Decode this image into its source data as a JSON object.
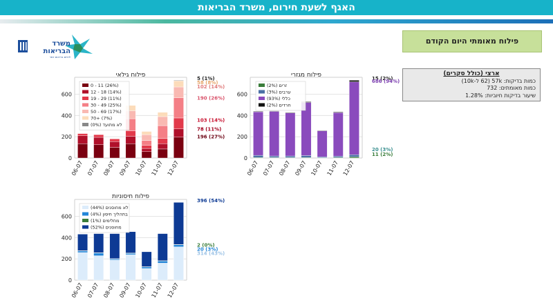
{
  "header": {
    "title": "האגף לשעת חירום, משרד הבריאות"
  },
  "logo": {
    "line1": "משרד",
    "line2": "הבריאות",
    "line3": "לחיים בריאים יותר"
  },
  "banner": {
    "text": "פילוח מאומתי היום הקודם"
  },
  "summary": {
    "title": "ארצי (כולל סקרים)",
    "line1": "כמות בדיקות: 57k (62 ל-10k)",
    "line2": "כמות מאומתים: 732",
    "line3": "שיעור בדיקות חיוביות: 1.28%"
  },
  "colors": {
    "header": "#17b3c9",
    "banner": "#c7e09a"
  },
  "chart_data": [
    {
      "id": "age",
      "type": "bar",
      "stacked": true,
      "title": "פילוח גילאי",
      "categories": [
        "06-07",
        "07-07",
        "08-07",
        "09-07",
        "10-07",
        "11-07",
        "12-07"
      ],
      "ylim": [
        0,
        760
      ],
      "yticks": [
        0,
        200,
        400,
        600
      ],
      "grid": true,
      "series": [
        {
          "name": "0 - 11 (26%)",
          "color": "#7a0010",
          "values": [
            135,
            125,
            100,
            135,
            60,
            85,
            196
          ]
        },
        {
          "name": "12 - 18 (14%)",
          "color": "#b0102a",
          "values": [
            75,
            70,
            55,
            70,
            30,
            50,
            78
          ]
        },
        {
          "name": "19 - 29 (11%)",
          "color": "#e23a4b",
          "values": [
            20,
            25,
            25,
            50,
            30,
            50,
            103
          ]
        },
        {
          "name": "30 - 49 (25%)",
          "color": "#f47f86",
          "values": [
            0,
            0,
            0,
            115,
            45,
            120,
            190
          ]
        },
        {
          "name": "50 - 69 (17%)",
          "color": "#f9b9b2",
          "values": [
            0,
            0,
            0,
            75,
            55,
            85,
            102
          ]
        },
        {
          "name": "70+ (7%)",
          "color": "#fcdcba",
          "values": [
            0,
            0,
            0,
            50,
            30,
            40,
            58
          ]
        },
        {
          "name": "לא מתועד (0%)",
          "color": "#888888",
          "values": [
            0,
            0,
            0,
            0,
            0,
            0,
            5
          ]
        }
      ],
      "annotations": [
        {
          "text": "5 (1%)",
          "y": 752,
          "color": "#222222"
        },
        {
          "text": "58 (8%)",
          "y": 716,
          "color": "#e7a56a"
        },
        {
          "text": "102 (14%)",
          "y": 677,
          "color": "#e07a7a"
        },
        {
          "text": "190 (26%)",
          "y": 570,
          "color": "#d9536b"
        },
        {
          "text": "103 (14%)",
          "y": 362,
          "color": "#c8102e"
        },
        {
          "text": "78 (11%)",
          "y": 275,
          "color": "#a0001c"
        },
        {
          "text": "196 (27%)",
          "y": 206,
          "color": "#6b0011"
        }
      ]
    },
    {
      "id": "sector",
      "type": "bar",
      "stacked": true,
      "title": "פילוח מגזרי",
      "categories": [
        "06-07",
        "07-07",
        "08-07",
        "09-07",
        "10-07",
        "11-07",
        "12-07"
      ],
      "ylim": [
        0,
        760
      ],
      "yticks": [
        0,
        200,
        400,
        600
      ],
      "grid": true,
      "series": [
        {
          "name": "זרים (2%)",
          "color": "#3a7d3a",
          "values": [
            5,
            4,
            4,
            5,
            3,
            5,
            11
          ]
        },
        {
          "name": "ערבים (3%)",
          "color": "#4a6fa5",
          "values": [
            20,
            15,
            15,
            18,
            8,
            12,
            20
          ]
        },
        {
          "name": "כללי (93%)",
          "color": "#8a4bbd",
          "values": [
            410,
            420,
            405,
            500,
            245,
            410,
            686
          ]
        },
        {
          "name": "חרדים (2%)",
          "color": "#111111",
          "values": [
            5,
            5,
            5,
            7,
            4,
            6,
            15
          ]
        }
      ],
      "annotations": [
        {
          "text": "15 (2%)",
          "y": 752,
          "color": "#222222"
        },
        {
          "text": "686 (94%)",
          "y": 727,
          "color": "#7c3fb0"
        },
        {
          "text": "20 (3%)",
          "y": 83,
          "color": "#3a8f8f"
        },
        {
          "text": "11 (2%)",
          "y": 40,
          "color": "#3a7d3a"
        }
      ]
    },
    {
      "id": "vaccination",
      "type": "bar",
      "stacked": true,
      "title": "פילוח חיסוניות",
      "categories": [
        "06-07",
        "07-07",
        "08-07",
        "09-07",
        "10-07",
        "11-07",
        "12-07"
      ],
      "ylim": [
        0,
        760
      ],
      "yticks": [
        0,
        200,
        400,
        600
      ],
      "grid": true,
      "series": [
        {
          "name": "לא מחוסנים (44%)",
          "color": "#dcecfb",
          "values": [
            260,
            230,
            190,
            240,
            110,
            160,
            314
          ]
        },
        {
          "name": "בתהליך חיסון (4%)",
          "color": "#2486d8",
          "values": [
            15,
            25,
            10,
            12,
            15,
            20,
            20
          ]
        },
        {
          "name": "מחלימים (1%)",
          "color": "#3a7d3a",
          "values": [
            3,
            3,
            3,
            4,
            2,
            3,
            2
          ]
        },
        {
          "name": "מחוסנים (52%)",
          "color": "#0d3a94",
          "values": [
            155,
            180,
            235,
            200,
            140,
            255,
            396
          ]
        }
      ],
      "annotations": [
        {
          "text": "396 (54%)",
          "y": 752,
          "color": "#0d3a94"
        },
        {
          "text": "2 (0%)",
          "y": 333,
          "color": "#3a7d3a"
        },
        {
          "text": "20 (3%)",
          "y": 295,
          "color": "#2486d8"
        },
        {
          "text": "314 (43%)",
          "y": 258,
          "color": "#9dc3e6"
        }
      ]
    }
  ]
}
